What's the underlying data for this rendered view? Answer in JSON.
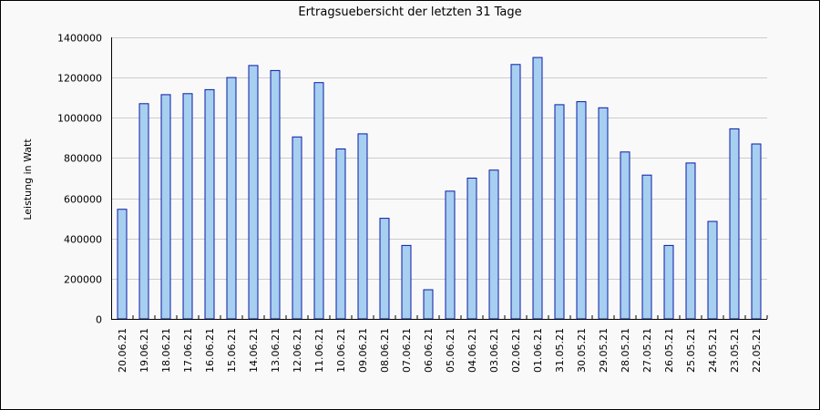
{
  "chart_data": {
    "type": "bar",
    "title": "Ertragsuebersicht der letzten 31 Tage",
    "xlabel": "",
    "ylabel": "Leistung in Watt",
    "ylim": [
      0,
      1400000
    ],
    "yticks": [
      0,
      200000,
      400000,
      600000,
      800000,
      1000000,
      1200000,
      1400000
    ],
    "ytick_labels": [
      "0",
      "200000",
      "400000",
      "600000",
      "800000",
      "1000000",
      "1200000",
      "1400000"
    ],
    "grid": true,
    "legend": "none",
    "colors": {
      "bar_fill": "#a6cff0",
      "bar_stroke": "#0a1aa8",
      "grid": "#cccccc"
    },
    "categories": [
      "20.06.21",
      "19.06.21",
      "18.06.21",
      "17.06.21",
      "16.06.21",
      "15.06.21",
      "14.06.21",
      "13.06.21",
      "12.06.21",
      "11.06.21",
      "10.06.21",
      "09.06.21",
      "08.06.21",
      "07.06.21",
      "06.06.21",
      "05.06.21",
      "04.06.21",
      "03.06.21",
      "02.06.21",
      "01.06.21",
      "31.05.21",
      "30.05.21",
      "29.05.21",
      "28.05.21",
      "27.05.21",
      "26.05.21",
      "25.05.21",
      "24.05.21",
      "23.05.21",
      "22.05.21"
    ],
    "values": [
      545000,
      1070000,
      1115000,
      1120000,
      1140000,
      1200000,
      1260000,
      1235000,
      905000,
      1175000,
      845000,
      920000,
      500000,
      365000,
      145000,
      635000,
      700000,
      740000,
      1265000,
      1300000,
      1065000,
      1080000,
      1050000,
      830000,
      715000,
      365000,
      775000,
      485000,
      945000,
      870000
    ]
  }
}
